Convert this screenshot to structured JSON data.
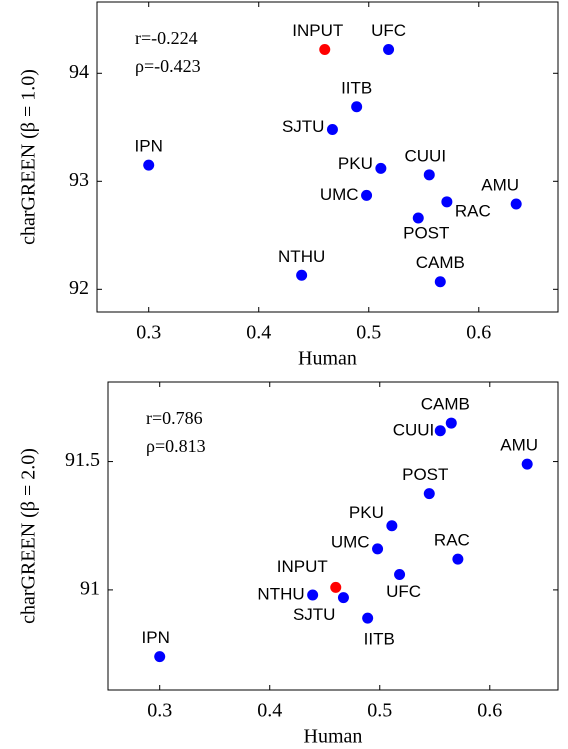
{
  "chart_data": [
    {
      "type": "scatter",
      "xlabel": "Human",
      "ylabel": "charGREEN (β = 1.0)",
      "annotations": [
        "r=-0.224",
        "ρ=-0.423"
      ],
      "labels": [
        "INPUT",
        "UFC",
        "IITB",
        "SJTU",
        "IPN",
        "PKU",
        "CUUI",
        "UMC",
        "AMU",
        "RAC",
        "POST",
        "NTHU",
        "CAMB"
      ],
      "x": [
        0.46,
        0.518,
        0.489,
        0.467,
        0.3,
        0.511,
        0.555,
        0.498,
        0.634,
        0.571,
        0.545,
        0.439,
        0.565
      ],
      "values": [
        94.22,
        94.22,
        93.69,
        93.48,
        93.15,
        93.12,
        93.06,
        92.87,
        92.79,
        92.81,
        92.66,
        92.13,
        92.07
      ],
      "colors": [
        "#ff0000",
        "#0000ff",
        "#0000ff",
        "#0000ff",
        "#0000ff",
        "#0000ff",
        "#0000ff",
        "#0000ff",
        "#0000ff",
        "#0000ff",
        "#0000ff",
        "#0000ff",
        "#0000ff"
      ],
      "xlim": [
        0.253,
        0.672
      ],
      "xticks": [
        0.3,
        0.4,
        0.5,
        0.6
      ],
      "ylim": [
        91.79,
        94.66
      ],
      "yticks": [
        92,
        93,
        94
      ]
    },
    {
      "type": "scatter",
      "xlabel": "Human",
      "ylabel": "charGREEN (β = 2.0)",
      "annotations": [
        "r=0.786",
        "ρ=0.813"
      ],
      "labels": [
        "CAMB",
        "CUUI",
        "AMU",
        "POST",
        "PKU",
        "UMC",
        "RAC",
        "INPUT",
        "UFC",
        "NTHU",
        "SJTU",
        "IITB",
        "IPN"
      ],
      "x": [
        0.565,
        0.555,
        0.634,
        0.545,
        0.511,
        0.498,
        0.571,
        0.46,
        0.518,
        0.439,
        0.467,
        0.489,
        0.3
      ],
      "values": [
        91.65,
        91.62,
        91.49,
        91.375,
        91.25,
        91.16,
        91.12,
        91.01,
        91.06,
        90.98,
        90.97,
        90.89,
        90.74
      ],
      "colors": [
        "#0000ff",
        "#0000ff",
        "#0000ff",
        "#0000ff",
        "#0000ff",
        "#0000ff",
        "#0000ff",
        "#ff0000",
        "#0000ff",
        "#0000ff",
        "#0000ff",
        "#0000ff",
        "#0000ff"
      ],
      "xlim": [
        0.253,
        0.662
      ],
      "xticks": [
        0.3,
        0.4,
        0.5,
        0.6
      ],
      "ylim": [
        90.61,
        91.81
      ],
      "yticks": [
        91,
        91.5
      ]
    }
  ]
}
